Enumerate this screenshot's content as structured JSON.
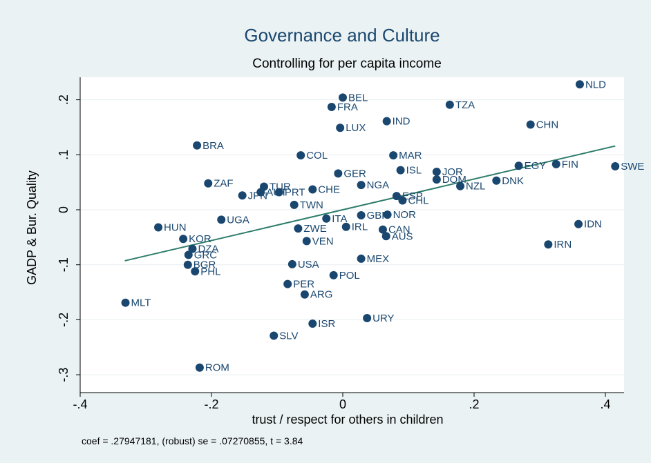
{
  "chart_data": {
    "type": "scatter",
    "title": "Governance and Culture",
    "subtitle": "Controlling for per capita income",
    "xlabel": "trust / respect for others in children",
    "ylabel": "GADP & Bur. Quality",
    "note": "coef = .27947181, (robust) se = .07270855, t = 3.84",
    "xlim": [
      -0.4,
      0.43
    ],
    "ylim": [
      -0.31,
      0.24
    ],
    "xticks": [
      -0.4,
      -0.2,
      0,
      0.2,
      0.4
    ],
    "xtick_labels": [
      "-.4",
      "-.2",
      "0",
      ".2",
      ".4"
    ],
    "yticks": [
      -0.3,
      -0.2,
      -0.1,
      0,
      0.1,
      0.2
    ],
    "ytick_labels": [
      "-.3",
      "-.2",
      "-.1",
      "0",
      ".1",
      ".2"
    ],
    "grid": true,
    "fit_line": {
      "slope": 0.27947181,
      "intercept": 0.0,
      "x_range": [
        -0.332,
        0.415
      ]
    },
    "colors": {
      "background": "#eaf2f3",
      "plot_bg": "#ffffff",
      "point": "#1a476f",
      "fit": "#2e7d6b",
      "grid": "#e8eef0",
      "label": "#1a476f"
    },
    "points": [
      {
        "label": "NLD",
        "x": 0.361,
        "y": 0.228
      },
      {
        "label": "BEL",
        "x": 0.0,
        "y": 0.204
      },
      {
        "label": "TZA",
        "x": 0.163,
        "y": 0.191
      },
      {
        "label": "FRA",
        "x": -0.017,
        "y": 0.187
      },
      {
        "label": "IND",
        "x": 0.067,
        "y": 0.161
      },
      {
        "label": "CHN",
        "x": 0.286,
        "y": 0.155
      },
      {
        "label": "LUX",
        "x": -0.004,
        "y": 0.149
      },
      {
        "label": "BRA",
        "x": -0.222,
        "y": 0.117
      },
      {
        "label": "COL",
        "x": -0.064,
        "y": 0.099
      },
      {
        "label": "MAR",
        "x": 0.077,
        "y": 0.099
      },
      {
        "label": "FIN",
        "x": 0.325,
        "y": 0.083
      },
      {
        "label": "EGY",
        "x": 0.268,
        "y": 0.08
      },
      {
        "label": "SWE",
        "x": 0.415,
        "y": 0.079
      },
      {
        "label": "ISL",
        "x": 0.088,
        "y": 0.072
      },
      {
        "label": "JOR",
        "x": 0.143,
        "y": 0.069
      },
      {
        "label": "GER",
        "x": -0.007,
        "y": 0.066
      },
      {
        "label": "DOM",
        "x": 0.143,
        "y": 0.055
      },
      {
        "label": "DNK",
        "x": 0.234,
        "y": 0.053
      },
      {
        "label": "ZAF",
        "x": -0.205,
        "y": 0.048
      },
      {
        "label": "NGA",
        "x": 0.028,
        "y": 0.045
      },
      {
        "label": "NZL",
        "x": 0.179,
        "y": 0.043
      },
      {
        "label": "TUR",
        "x": -0.12,
        "y": 0.042
      },
      {
        "label": "CHE",
        "x": -0.046,
        "y": 0.037
      },
      {
        "label": "AUT",
        "x": -0.125,
        "y": 0.032
      },
      {
        "label": "PRT",
        "x": -0.097,
        "y": 0.032
      },
      {
        "label": "JPN",
        "x": -0.153,
        "y": 0.026
      },
      {
        "label": "ESP",
        "x": 0.082,
        "y": 0.025
      },
      {
        "label": "CHL",
        "x": 0.091,
        "y": 0.017
      },
      {
        "label": "TWN",
        "x": -0.074,
        "y": 0.009
      },
      {
        "label": "GBR",
        "x": 0.028,
        "y": -0.01
      },
      {
        "label": "NOR",
        "x": 0.068,
        "y": -0.009
      },
      {
        "label": "ITA",
        "x": -0.025,
        "y": -0.016
      },
      {
        "label": "UGA",
        "x": -0.185,
        "y": -0.018
      },
      {
        "label": "IDN",
        "x": 0.359,
        "y": -0.026
      },
      {
        "label": "IRL",
        "x": 0.005,
        "y": -0.031
      },
      {
        "label": "HUN",
        "x": -0.281,
        "y": -0.032
      },
      {
        "label": "ZWE",
        "x": -0.068,
        "y": -0.034
      },
      {
        "label": "CAN",
        "x": 0.061,
        "y": -0.036
      },
      {
        "label": "AUS",
        "x": 0.066,
        "y": -0.048
      },
      {
        "label": "KOR",
        "x": -0.243,
        "y": -0.053
      },
      {
        "label": "VEN",
        "x": -0.055,
        "y": -0.057
      },
      {
        "label": "IRN",
        "x": 0.313,
        "y": -0.063
      },
      {
        "label": "DZA",
        "x": -0.229,
        "y": -0.071
      },
      {
        "label": "GRC",
        "x": -0.235,
        "y": -0.082
      },
      {
        "label": "MEX",
        "x": 0.028,
        "y": -0.089
      },
      {
        "label": "USA",
        "x": -0.077,
        "y": -0.099
      },
      {
        "label": "BGR",
        "x": -0.236,
        "y": -0.1
      },
      {
        "label": "PHL",
        "x": -0.225,
        "y": -0.112
      },
      {
        "label": "POL",
        "x": -0.014,
        "y": -0.119
      },
      {
        "label": "PER",
        "x": -0.084,
        "y": -0.135
      },
      {
        "label": "ARG",
        "x": -0.058,
        "y": -0.154
      },
      {
        "label": "MLT",
        "x": -0.331,
        "y": -0.169
      },
      {
        "label": "URY",
        "x": 0.037,
        "y": -0.197
      },
      {
        "label": "ISR",
        "x": -0.046,
        "y": -0.207
      },
      {
        "label": "SLV",
        "x": -0.105,
        "y": -0.229
      },
      {
        "label": "ROM",
        "x": -0.218,
        "y": -0.287
      }
    ]
  }
}
